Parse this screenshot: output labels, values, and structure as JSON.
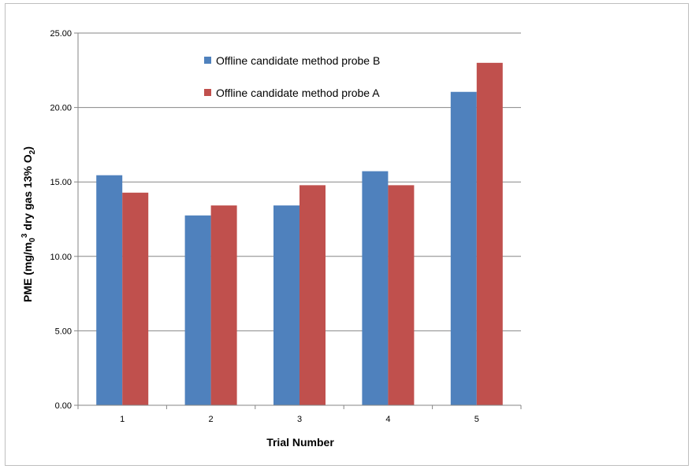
{
  "chart_data": {
    "type": "bar",
    "categories": [
      "1",
      "2",
      "3",
      "4",
      "5"
    ],
    "series": [
      {
        "name": "Offline candidate method probe B",
        "color": "#4f81bd",
        "values": [
          15.45,
          12.75,
          13.42,
          15.72,
          21.05
        ]
      },
      {
        "name": "Offline candidate method probe A",
        "color": "#c0504d",
        "values": [
          14.28,
          13.42,
          14.78,
          14.78,
          23.0
        ]
      }
    ],
    "xlabel": "Trial Number",
    "ylabel": {
      "main": "PME (mg/m",
      "sub1": "0",
      "sup": "3",
      "mid": " dry gas 13% O",
      "sub2": "2",
      "end": ")"
    },
    "ylim": [
      0,
      25
    ],
    "yticks": [
      "0.00",
      "5.00",
      "10.00",
      "15.00",
      "20.00",
      "25.00"
    ],
    "grid": true,
    "legend_position": "top-center inside plot"
  }
}
